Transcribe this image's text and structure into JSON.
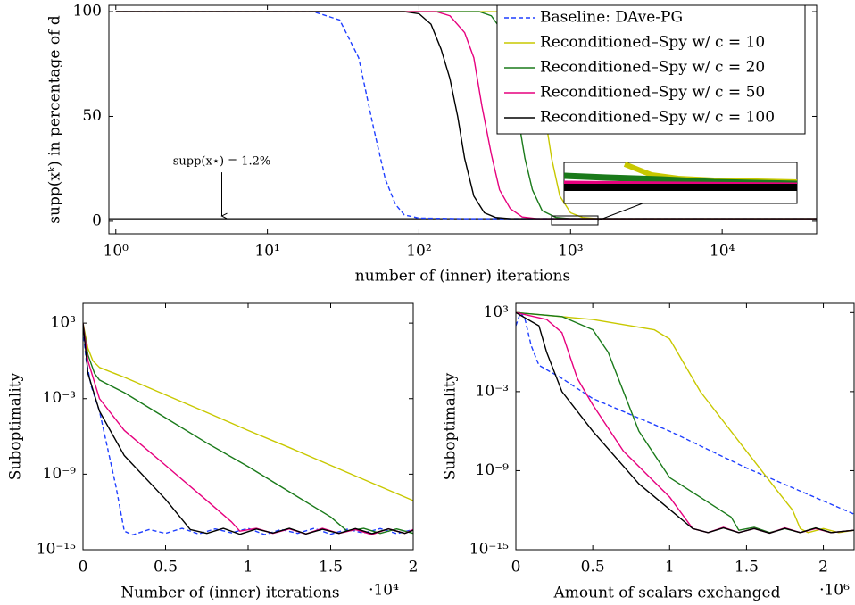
{
  "chart_data": [
    {
      "type": "line",
      "log_x": true,
      "y_label": "supp(xᵏ) in percentage of d",
      "x_label": "number of (inner) iterations",
      "xlim": [
        0.9,
        42000
      ],
      "ylim": [
        -6,
        103
      ],
      "xticks": [
        {
          "value": 1,
          "label": "10⁰"
        },
        {
          "value": 10,
          "label": "10¹"
        },
        {
          "value": 100,
          "label": "10²"
        },
        {
          "value": 1000,
          "label": "10³"
        },
        {
          "value": 10000,
          "label": "10⁴"
        }
      ],
      "yticks": [
        0,
        50,
        100
      ],
      "legend": "top-right",
      "annotation": {
        "text": "supp(x⋆) = 1.2%",
        "value": 1.2,
        "x": 5
      },
      "series": [
        {
          "name": "Baseline: DAve-PG",
          "color": "#1f3fff",
          "dashed": true,
          "x": [
            1,
            20,
            30,
            40,
            50,
            60,
            70,
            80,
            100,
            200,
            42000
          ],
          "values": [
            100,
            100,
            96,
            78,
            45,
            20,
            8,
            3,
            1.5,
            1.2,
            1.2
          ]
        },
        {
          "name": "Reconditioned–Spy w/ c = 10",
          "color": "#c8c800",
          "x": [
            1,
            400,
            500,
            560,
            620,
            680,
            750,
            850,
            1000,
            1200,
            1500,
            42000
          ],
          "values": [
            100,
            100,
            97,
            90,
            70,
            50,
            30,
            12,
            4,
            1.8,
            1.2,
            1.2
          ]
        },
        {
          "name": "Reconditioned–Spy w/ c = 20",
          "color": "#1a7a1a",
          "x": [
            1,
            250,
            300,
            360,
            400,
            450,
            500,
            560,
            650,
            800,
            1000,
            42000
          ],
          "values": [
            100,
            100,
            98,
            90,
            75,
            50,
            30,
            15,
            5,
            1.8,
            1.2,
            1.2
          ]
        },
        {
          "name": "Reconditioned–Spy w/ c = 50",
          "color": "#e6007e",
          "x": [
            1,
            130,
            160,
            200,
            230,
            260,
            300,
            340,
            400,
            480,
            600,
            42000
          ],
          "values": [
            100,
            100,
            98,
            90,
            78,
            55,
            32,
            15,
            6,
            2,
            1.2,
            1.2
          ]
        },
        {
          "name": "Reconditioned–Spy w/ c = 100",
          "color": "#000000",
          "x": [
            1,
            80,
            100,
            120,
            140,
            160,
            180,
            200,
            230,
            270,
            320,
            400,
            42000
          ],
          "values": [
            100,
            100,
            99,
            94,
            82,
            68,
            50,
            30,
            12,
            4,
            1.8,
            1.2,
            1.2
          ]
        }
      ]
    },
    {
      "type": "line",
      "log_y": true,
      "y_label": "Suboptimality",
      "x_label": "Number of (inner) iterations",
      "x_scale_label": "·10⁴",
      "xlim": [
        0,
        20000
      ],
      "ylim": [
        1e-15,
        37000
      ],
      "xticks": [
        0,
        {
          "value": 5000,
          "label": "0.5"
        },
        {
          "value": 10000,
          "label": "1"
        },
        {
          "value": 15000,
          "label": "1.5"
        },
        {
          "value": 20000,
          "label": "2"
        }
      ],
      "yticks": [
        {
          "value": 1000,
          "label": "10³"
        },
        {
          "value": 0.001,
          "label": "10⁻³"
        },
        {
          "value": 1e-09,
          "label": "10⁻⁹"
        },
        {
          "value": 1e-15,
          "label": "10⁻¹⁵"
        }
      ],
      "series": [
        {
          "color": "#1f3fff",
          "dashed": true,
          "x": [
            0,
            200,
            500,
            1000,
            1500,
            2000,
            2500,
            3000,
            4000,
            5000,
            6000,
            7000,
            8000,
            9000,
            10000,
            11000,
            12000,
            13000,
            14000,
            15000,
            16000,
            17000,
            18000,
            19000,
            20000
          ],
          "values": [
            300,
            1,
            0.01,
            0.0001,
            1e-07,
            1e-10,
            3e-14,
            1.5e-14,
            4e-14,
            2e-14,
            5e-14,
            1.8e-14,
            4.5e-14,
            2.2e-14,
            5e-14,
            1.6e-14,
            4e-14,
            2e-14,
            5e-14,
            1.7e-14,
            4.2e-14,
            2.1e-14,
            4.8e-14,
            1.9e-14,
            4e-14
          ]
        },
        {
          "color": "#c8c800",
          "x": [
            0,
            300,
            600,
            1000,
            2500,
            5000,
            7500,
            10000,
            12500,
            15000,
            17500,
            20000
          ],
          "values": [
            1000,
            10,
            1,
            0.3,
            0.05,
            0.002,
            8e-05,
            3e-06,
            1.3e-07,
            5e-09,
            2e-10,
            8e-12
          ]
        },
        {
          "color": "#1a7a1a",
          "x": [
            0,
            300,
            700,
            1000,
            2500,
            5000,
            7500,
            10000,
            12500,
            15000,
            16000,
            17000,
            18000,
            19000,
            20000
          ],
          "values": [
            1000,
            3,
            0.1,
            0.03,
            0.003,
            3e-05,
            3e-07,
            4e-09,
            4e-11,
            4e-13,
            3e-14,
            5e-14,
            2e-14,
            4.5e-14,
            2e-14
          ]
        },
        {
          "color": "#e6007e",
          "x": [
            0,
            300,
            1000,
            2500,
            5000,
            7500,
            9000,
            9500,
            10500,
            11500,
            12500,
            13500,
            14500,
            15500,
            16500,
            17500,
            18500,
            19500,
            20000
          ],
          "values": [
            1000,
            1,
            0.001,
            3e-06,
            5e-09,
            8e-12,
            1.6e-13,
            3e-14,
            5e-14,
            2e-14,
            4.5e-14,
            1.8e-14,
            5e-14,
            2e-14,
            4e-14,
            1.6e-14,
            4.6e-14,
            2e-14,
            4e-14
          ]
        },
        {
          "color": "#000000",
          "x": [
            0,
            300,
            1000,
            2500,
            5000,
            6500,
            7500,
            8500,
            9500,
            10500,
            11500,
            12500,
            13500,
            14500,
            15500,
            16500,
            17500,
            18500,
            19500,
            20000
          ],
          "values": [
            1000,
            0.1,
            0.0001,
            3e-08,
            1e-11,
            4e-14,
            2e-14,
            5e-14,
            1.7e-14,
            4.4e-14,
            2.1e-14,
            5e-14,
            1.8e-14,
            4.2e-14,
            2e-14,
            4.8e-14,
            1.9e-14,
            4.5e-14,
            2e-14,
            3.5e-14
          ]
        }
      ]
    },
    {
      "type": "line",
      "log_y": true,
      "y_label": "Suboptimality",
      "x_label": "Amount of scalars exchanged",
      "x_scale_label": "·10⁶",
      "xlim": [
        0,
        2200000
      ],
      "ylim": [
        1e-15,
        5000
      ],
      "xticks": [
        0,
        {
          "value": 500000,
          "label": "0.5"
        },
        {
          "value": 1000000,
          "label": "1"
        },
        {
          "value": 1500000,
          "label": "1.5"
        },
        {
          "value": 2000000,
          "label": "2"
        }
      ],
      "yticks": [
        {
          "value": 1000,
          "label": "10³"
        },
        {
          "value": 0.001,
          "label": "10⁻³"
        },
        {
          "value": 1e-09,
          "label": "10⁻⁹"
        },
        {
          "value": 1e-15,
          "label": "10⁻¹⁵"
        }
      ],
      "series": [
        {
          "color": "#1f3fff",
          "dashed": true,
          "x": [
            0,
            30000,
            60000,
            100000,
            150000,
            300000,
            500000,
            1000000,
            1500000,
            2000000,
            2200000
          ],
          "values": [
            100,
            1000,
            300,
            3,
            0.1,
            0.01,
            0.0003,
            1e-06,
            1.6e-09,
            5e-12,
            5e-13
          ]
        },
        {
          "color": "#c8c800",
          "x": [
            0,
            500000,
            900000,
            1000000,
            1100000,
            1200000,
            1500000,
            1700000,
            1800000,
            1850000,
            1900000,
            2000000,
            2100000,
            2200000
          ],
          "values": [
            1000,
            300,
            50,
            10,
            0.1,
            0.001,
            3e-08,
            3e-11,
            1e-12,
            4e-14,
            2e-14,
            4e-14,
            2e-14,
            3e-14
          ]
        },
        {
          "color": "#1a7a1a",
          "x": [
            0,
            300000,
            500000,
            600000,
            700000,
            800000,
            1000000,
            1400000,
            1450000,
            1550000,
            1650000,
            1750000,
            1850000,
            1950000,
            2050000,
            2200000
          ],
          "values": [
            1000,
            500,
            50,
            1,
            0.001,
            1e-06,
            3e-10,
            3e-13,
            3e-14,
            5e-14,
            2e-14,
            4e-14,
            2e-14,
            4.5e-14,
            2e-14,
            3e-14
          ]
        },
        {
          "color": "#e6007e",
          "x": [
            0,
            200000,
            300000,
            400000,
            500000,
            700000,
            1000000,
            1150000,
            1250000,
            1350000,
            1450000,
            1550000,
            1650000,
            1750000,
            1850000,
            1950000,
            2050000,
            2200000
          ],
          "values": [
            1000,
            300,
            30,
            0.01,
            0.0001,
            3e-08,
            1e-11,
            4e-14,
            2e-14,
            5e-14,
            2e-14,
            4e-14,
            1.8e-14,
            4.5e-14,
            2e-14,
            4e-14,
            2e-14,
            3e-14
          ]
        },
        {
          "color": "#000000",
          "x": [
            0,
            150000,
            200000,
            300000,
            500000,
            800000,
            1150000,
            1250000,
            1350000,
            1450000,
            1550000,
            1650000,
            1750000,
            1850000,
            1950000,
            2050000,
            2200000
          ],
          "values": [
            1000,
            100,
            1,
            0.001,
            1e-06,
            1e-10,
            4e-14,
            2e-14,
            4.5e-14,
            2e-14,
            4e-14,
            1.8e-14,
            4.2e-14,
            2e-14,
            4.4e-14,
            2e-14,
            3e-14
          ]
        }
      ]
    }
  ]
}
